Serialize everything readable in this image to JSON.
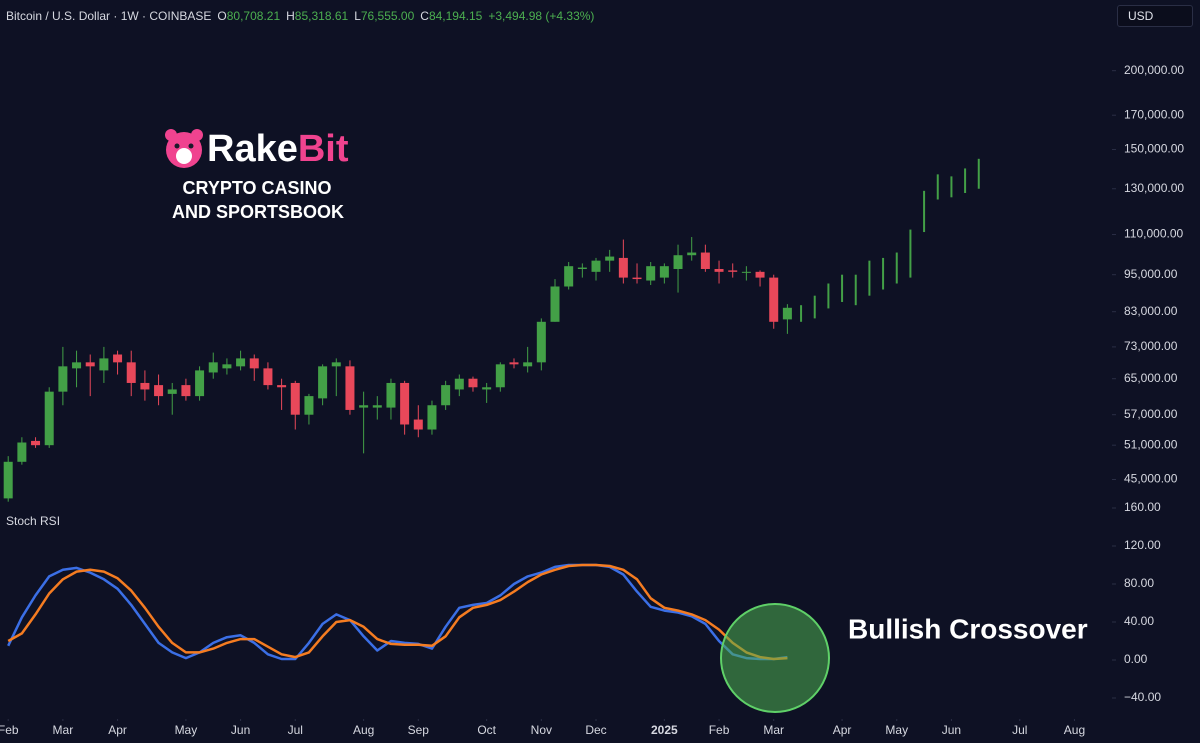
{
  "chart_data": [
    {
      "type": "candlestick",
      "title": "Bitcoin / U.S. Dollar · 1W · COINBASE",
      "ohlc_legend": [
        {
          "label": "O",
          "value": "80,708.21"
        },
        {
          "label": "H",
          "value": "85,318.61"
        },
        {
          "label": "L",
          "value": "76,555.00"
        },
        {
          "label": "C",
          "value": "84,194.15"
        }
      ],
      "change": "+3,494.98 (+4.33%)",
      "currency": "USD",
      "log_scale": true,
      "up_color": "#43a047",
      "down_color": "#e8485a",
      "x": [
        0,
        1,
        2,
        3,
        4,
        5,
        6,
        7,
        8,
        9,
        10,
        11,
        12,
        13,
        14,
        15,
        16,
        17,
        18,
        19,
        20,
        21,
        22,
        23,
        24,
        25,
        26,
        27,
        28,
        29,
        30,
        31,
        32,
        33,
        34,
        35,
        36,
        37,
        38,
        39,
        40,
        41,
        42,
        43,
        44,
        45,
        46,
        47,
        48,
        49,
        50,
        51,
        52,
        53,
        54,
        55,
        56,
        57
      ],
      "open": [
        42000,
        48000,
        51800,
        51000,
        62000,
        67500,
        69000,
        67000,
        71000,
        69000,
        64000,
        63500,
        61500,
        63500,
        61000,
        66500,
        67500,
        68000,
        70000,
        67500,
        63500,
        64000,
        57000,
        60500,
        68000,
        68000,
        58500,
        58500,
        58500,
        64000,
        56000,
        54000,
        59000,
        62500,
        65000,
        62500,
        63000,
        69000,
        68000,
        69000,
        80000,
        91000,
        97000,
        96000,
        100000,
        101000,
        94000,
        93000,
        94000,
        97000,
        102000,
        103000,
        97000,
        96500,
        96000,
        96000,
        94000,
        80708.21
      ],
      "high": [
        49000,
        52500,
        52500,
        63000,
        73000,
        72000,
        71000,
        73000,
        72000,
        72000,
        67000,
        66000,
        64000,
        65000,
        68000,
        71500,
        70000,
        72000,
        71000,
        69000,
        65000,
        64500,
        61500,
        68500,
        70000,
        69500,
        62000,
        61000,
        65000,
        64500,
        59000,
        60000,
        64500,
        66000,
        65500,
        64000,
        69000,
        70000,
        73000,
        81000,
        93500,
        99500,
        99000,
        101000,
        104000,
        108000,
        99000,
        99500,
        99000,
        106000,
        109000,
        106000,
        100000,
        99000,
        98000,
        96500,
        95000,
        85318.61
      ],
      "low": [
        41500,
        47500,
        50500,
        50500,
        59000,
        63000,
        61000,
        64000,
        66000,
        61000,
        60000,
        59000,
        57000,
        60000,
        60000,
        65000,
        66000,
        67000,
        64500,
        62500,
        58000,
        54000,
        55000,
        59000,
        61000,
        57000,
        49500,
        56000,
        56000,
        53000,
        52500,
        53000,
        58000,
        61000,
        62000,
        59500,
        62000,
        67500,
        66500,
        67000,
        80000,
        90000,
        94000,
        93000,
        96000,
        92000,
        92000,
        91500,
        92000,
        89000,
        100000,
        96000,
        92000,
        94000,
        93000,
        91000,
        78000,
        76555.0
      ],
      "close": [
        48000,
        51500,
        51000,
        62000,
        68000,
        69000,
        68000,
        70000,
        69000,
        64000,
        62500,
        61000,
        62500,
        61000,
        67000,
        69000,
        68500,
        70000,
        67500,
        63500,
        63000,
        57000,
        61000,
        68000,
        69000,
        58000,
        59000,
        59000,
        64000,
        55000,
        54000,
        59000,
        63500,
        65000,
        63000,
        63000,
        68500,
        68500,
        69000,
        80000,
        91000,
        98000,
        97500,
        100000,
        101500,
        94000,
        93500,
        98000,
        98000,
        102000,
        103000,
        97000,
        96000,
        96000,
        96000,
        94000,
        80000,
        84194.15
      ],
      "projection": {
        "color": "#43a047",
        "x": [
          58,
          59,
          60,
          61,
          62,
          63,
          64,
          65,
          66,
          67,
          68,
          69,
          70,
          71
        ],
        "low": [
          80000,
          81000,
          84000,
          86000,
          85000,
          88000,
          90000,
          92000,
          94000,
          111000,
          125000,
          126000,
          128000,
          130000
        ],
        "high": [
          85000,
          88000,
          92000,
          95000,
          95000,
          100000,
          101000,
          103000,
          112000,
          129000,
          137000,
          136000,
          140000,
          145000
        ]
      },
      "xlim": [
        -0.6,
        80.6
      ],
      "ylim": [
        41000,
        232000
      ],
      "yticks": [
        {
          "value": 200000,
          "label": "200,000.00"
        },
        {
          "value": 170000,
          "label": "170,000.00"
        },
        {
          "value": 150000,
          "label": "150,000.00"
        },
        {
          "value": 130000,
          "label": "130,000.00"
        },
        {
          "value": 110000,
          "label": "110,000.00"
        },
        {
          "value": 95000,
          "label": "95,000.00"
        },
        {
          "value": 83000,
          "label": "83,000.00"
        },
        {
          "value": 73000,
          "label": "73,000.00"
        },
        {
          "value": 65000,
          "label": "65,000.00"
        },
        {
          "value": 57000,
          "label": "57,000.00"
        },
        {
          "value": 51000,
          "label": "51,000.00"
        },
        {
          "value": 45000,
          "label": "45,000.00"
        }
      ],
      "logo": {
        "name_a": "Rake",
        "name_b": "Bit",
        "line1": "CRYPTO CASINO",
        "line2": "AND SPORTSBOOK"
      }
    },
    {
      "type": "line",
      "title": "Stoch RSI",
      "annotation": "Bullish Crossover",
      "x": [
        0,
        1,
        2,
        3,
        4,
        5,
        6,
        7,
        8,
        9,
        10,
        11,
        12,
        13,
        14,
        15,
        16,
        17,
        18,
        19,
        20,
        21,
        22,
        23,
        24,
        25,
        26,
        27,
        28,
        29,
        30,
        31,
        32,
        33,
        34,
        35,
        36,
        37,
        38,
        39,
        40,
        41,
        42,
        43,
        44,
        45,
        46,
        47,
        48,
        49,
        50,
        51,
        52,
        53,
        54,
        55,
        56,
        57
      ],
      "series": [
        {
          "color": "#3b6fe6",
          "values": [
            15,
            45,
            68,
            88,
            95,
            97,
            92,
            85,
            75,
            58,
            38,
            18,
            8,
            2,
            8,
            18,
            24,
            26,
            18,
            6,
            1,
            1,
            18,
            38,
            48,
            42,
            25,
            10,
            20,
            18,
            17,
            12,
            35,
            55,
            58,
            60,
            68,
            80,
            88,
            92,
            98,
            100,
            100,
            100,
            98,
            90,
            72,
            56,
            52,
            50,
            46,
            38,
            20,
            6,
            2,
            1,
            1,
            3
          ]
        },
        {
          "color": "#f57c21",
          "values": [
            20,
            28,
            48,
            70,
            85,
            93,
            95,
            93,
            86,
            73,
            55,
            35,
            18,
            8,
            8,
            12,
            18,
            22,
            22,
            14,
            6,
            3,
            8,
            25,
            40,
            42,
            35,
            22,
            17,
            16,
            16,
            15,
            25,
            45,
            55,
            58,
            63,
            72,
            82,
            90,
            95,
            99,
            100,
            100,
            99,
            95,
            85,
            65,
            55,
            52,
            48,
            42,
            32,
            18,
            8,
            3,
            1,
            2
          ]
        }
      ],
      "xlim": [
        -0.6,
        80.6
      ],
      "ylim": [
        -60,
        160
      ],
      "yticks": [
        {
          "value": 160,
          "label": "160.00"
        },
        {
          "value": 120,
          "label": "120.00"
        },
        {
          "value": 80,
          "label": "80.00"
        },
        {
          "value": 40,
          "label": "40.00"
        },
        {
          "value": 0,
          "label": "0.00"
        },
        {
          "value": -40,
          "label": "−40.00"
        }
      ],
      "xticks": [
        {
          "value": 0,
          "label": "Feb"
        },
        {
          "value": 4,
          "label": "Mar"
        },
        {
          "value": 8,
          "label": "Apr"
        },
        {
          "value": 13,
          "label": "May"
        },
        {
          "value": 17,
          "label": "Jun"
        },
        {
          "value": 21,
          "label": "Jul"
        },
        {
          "value": 26,
          "label": "Aug"
        },
        {
          "value": 30,
          "label": "Sep"
        },
        {
          "value": 35,
          "label": "Oct"
        },
        {
          "value": 39,
          "label": "Nov"
        },
        {
          "value": 43,
          "label": "Dec"
        },
        {
          "value": 48,
          "label": "2025"
        },
        {
          "value": 52,
          "label": "Feb"
        },
        {
          "value": 56,
          "label": "Mar"
        },
        {
          "value": 61,
          "label": "Apr"
        },
        {
          "value": 65,
          "label": "May"
        },
        {
          "value": 69,
          "label": "Jun"
        },
        {
          "value": 74,
          "label": "Jul"
        },
        {
          "value": 78,
          "label": "Aug"
        }
      ]
    }
  ]
}
